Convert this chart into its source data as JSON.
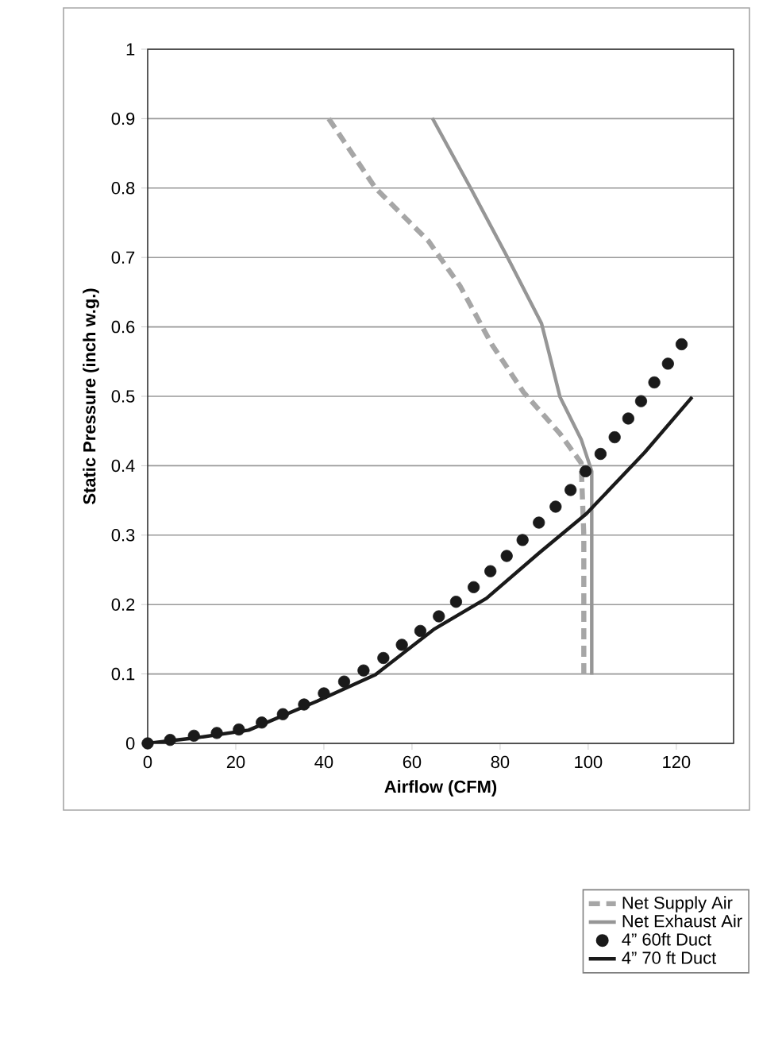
{
  "chart_data": {
    "type": "line",
    "xlabel": "Airflow (CFM)",
    "ylabel": "Static Pressure (inch w.g.)",
    "xlim": [
      0,
      133
    ],
    "xticks": [
      0,
      20,
      40,
      60,
      80,
      100,
      120
    ],
    "ylim": [
      0,
      1
    ],
    "yticks": [
      0,
      0.1,
      0.2,
      0.3,
      0.4,
      0.5,
      0.6,
      0.7,
      0.8,
      0.9,
      1
    ],
    "grid": "y",
    "legend": "bottom right",
    "series": [
      {
        "name": "Net Supply Air",
        "color": "#a6a6a6",
        "line_style": "dashed",
        "x": [
          41.1,
          51.7,
          63.7,
          70.9,
          78.1,
          85.3,
          93.6,
          98.4,
          99,
          99
        ],
        "values": [
          0.9,
          0.8,
          0.724,
          0.659,
          0.575,
          0.506,
          0.446,
          0.404,
          0.3,
          0.099
        ]
      },
      {
        "name": "Net Exhaust Air",
        "color": "#969696",
        "line_style": "solid",
        "x": [
          64.6,
          73.3,
          81.7,
          89.4,
          91.2,
          93.6,
          98.4,
          100.8,
          100.8
        ],
        "values": [
          0.901,
          0.8,
          0.7,
          0.605,
          0.56,
          0.499,
          0.438,
          0.392,
          0.099
        ]
      },
      {
        "name": "4” 60ft Duct",
        "color": "#1a1a1a",
        "type": "scatter",
        "marker": "circle",
        "x": [
          0,
          5.1,
          10.5,
          15.7,
          20.7,
          25.9,
          30.7,
          35.5,
          40,
          44.6,
          49,
          53.5,
          57.7,
          61.9,
          66.1,
          70,
          74,
          77.8,
          81.5,
          85.1,
          88.8,
          92.6,
          96,
          99.4,
          102.8,
          106,
          109.1,
          112,
          115,
          118.1,
          121.2
        ],
        "values": [
          0,
          0.005,
          0.011,
          0.015,
          0.02,
          0.03,
          0.042,
          0.056,
          0.072,
          0.089,
          0.105,
          0.123,
          0.142,
          0.162,
          0.183,
          0.204,
          0.225,
          0.248,
          0.27,
          0.293,
          0.318,
          0.341,
          0.365,
          0.392,
          0.417,
          0.441,
          0.468,
          0.493,
          0.52,
          0.547,
          0.575
        ]
      },
      {
        "name": "4” 70 ft Duct",
        "color": "#1a1a1a",
        "line_style": "solid",
        "x": [
          0,
          10.9,
          22.9,
          38.5,
          51.7,
          64.9,
          76.9,
          88.8,
          99.6,
          112.8,
          123.6
        ],
        "values": [
          0,
          0.008,
          0.019,
          0.061,
          0.099,
          0.164,
          0.209,
          0.274,
          0.331,
          0.419,
          0.499
        ]
      }
    ]
  }
}
